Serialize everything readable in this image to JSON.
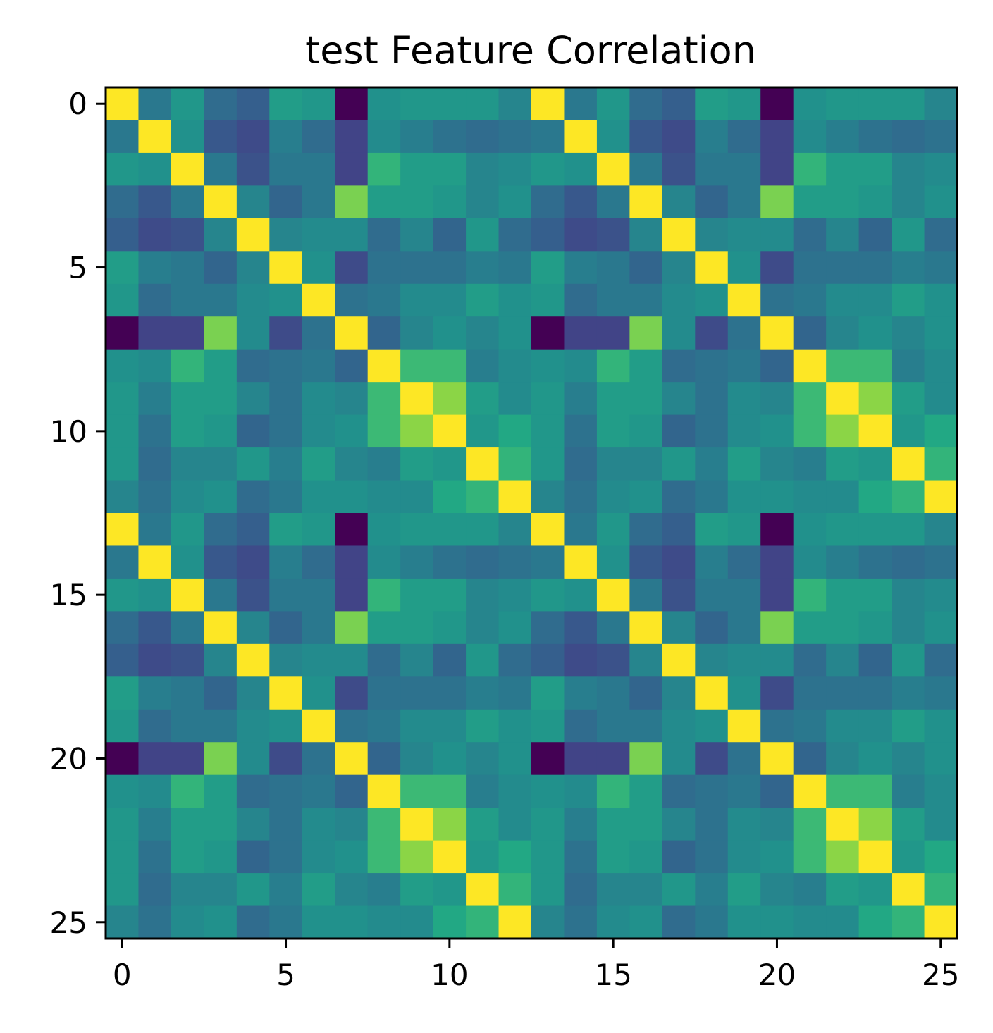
{
  "chart_data": {
    "type": "heatmap",
    "title": "test Feature Correlation",
    "xlabel": "",
    "ylabel": "",
    "n": 26,
    "x_ticks": [
      "0",
      "5",
      "10",
      "15",
      "20",
      "25"
    ],
    "y_ticks": [
      "0",
      "5",
      "10",
      "15",
      "20",
      "25"
    ],
    "tick_values": [
      0,
      5,
      10,
      15,
      20,
      25
    ],
    "colormap": "viridis",
    "vmin": -1,
    "vmax": 1,
    "grid": false,
    "legend": "none",
    "base_matrix": [
      [
        1.0,
        -0.2,
        0.05,
        -0.3,
        -0.4,
        0.1,
        0.05,
        -1.0,
        0.0,
        0.05,
        0.05,
        0.05,
        -0.1
      ],
      [
        -0.2,
        1.0,
        0.0,
        -0.45,
        -0.55,
        -0.15,
        -0.3,
        -0.6,
        -0.05,
        -0.15,
        -0.25,
        -0.3,
        -0.25
      ],
      [
        0.05,
        0.0,
        1.0,
        -0.2,
        -0.5,
        -0.2,
        -0.2,
        -0.6,
        0.3,
        0.1,
        0.1,
        -0.1,
        -0.05
      ],
      [
        -0.3,
        -0.45,
        -0.2,
        1.0,
        -0.1,
        -0.35,
        -0.2,
        0.6,
        0.1,
        0.1,
        0.05,
        -0.1,
        0.0
      ],
      [
        -0.4,
        -0.55,
        -0.5,
        -0.1,
        1.0,
        -0.1,
        -0.05,
        -0.05,
        -0.3,
        -0.1,
        -0.35,
        0.05,
        -0.3
      ],
      [
        0.1,
        -0.15,
        -0.2,
        -0.35,
        -0.1,
        1.0,
        0.0,
        -0.55,
        -0.25,
        -0.25,
        -0.25,
        -0.15,
        -0.2
      ],
      [
        0.05,
        -0.3,
        -0.2,
        -0.2,
        -0.05,
        0.0,
        1.0,
        -0.25,
        -0.2,
        -0.05,
        -0.05,
        0.1,
        0.0
      ],
      [
        -1.0,
        -0.6,
        -0.6,
        0.6,
        -0.05,
        -0.55,
        -0.25,
        1.0,
        -0.35,
        -0.1,
        0.0,
        -0.1,
        0.0
      ],
      [
        0.0,
        -0.05,
        0.3,
        0.1,
        -0.3,
        -0.25,
        -0.2,
        -0.35,
        1.0,
        0.35,
        0.35,
        -0.15,
        -0.05
      ],
      [
        0.05,
        -0.15,
        0.1,
        0.1,
        -0.1,
        -0.25,
        -0.05,
        -0.1,
        0.35,
        1.0,
        0.65,
        0.1,
        -0.05
      ],
      [
        0.05,
        -0.25,
        0.1,
        0.05,
        -0.35,
        -0.25,
        -0.05,
        0.0,
        0.35,
        0.65,
        1.0,
        0.05,
        0.2
      ],
      [
        0.05,
        -0.3,
        -0.1,
        -0.1,
        0.05,
        -0.15,
        0.1,
        -0.1,
        -0.15,
        0.1,
        0.05,
        1.0,
        0.3
      ],
      [
        -0.1,
        -0.25,
        -0.05,
        0.0,
        -0.3,
        -0.2,
        0.0,
        0.0,
        -0.05,
        -0.05,
        0.2,
        0.3,
        1.0
      ]
    ],
    "extra_row": [
      -0.1,
      -0.25,
      -0.05,
      0.0,
      -0.3,
      -0.2,
      0.0,
      0.0,
      -0.05,
      -0.05,
      0.2,
      0.3,
      1.0
    ]
  }
}
